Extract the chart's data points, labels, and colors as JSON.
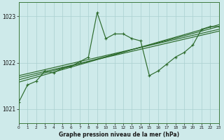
{
  "title": "Graphe pression niveau de la mer (hPa)",
  "bg_color": "#ceeaea",
  "grid_color": "#aacfcf",
  "line_color": "#2d6b2d",
  "ylim": [
    1020.7,
    1023.3
  ],
  "xlim": [
    0,
    23
  ],
  "yticks": [
    1021,
    1022,
    1023
  ],
  "xticks": [
    0,
    1,
    2,
    3,
    4,
    5,
    6,
    7,
    8,
    9,
    10,
    11,
    12,
    13,
    14,
    15,
    16,
    17,
    18,
    19,
    20,
    21,
    22,
    23
  ],
  "main_x": [
    0,
    1,
    2,
    3,
    4,
    5,
    6,
    7,
    8,
    9,
    10,
    11,
    12,
    13,
    14,
    15,
    16,
    17,
    18,
    19,
    20,
    21,
    22,
    23
  ],
  "main_y": [
    1021.15,
    1021.52,
    1021.6,
    1021.82,
    1021.78,
    1021.88,
    1021.92,
    1022.02,
    1022.12,
    1023.08,
    1022.52,
    1022.62,
    1022.62,
    1022.52,
    1022.47,
    1021.72,
    1021.82,
    1021.97,
    1022.12,
    1022.22,
    1022.38,
    1022.72,
    1022.78,
    1022.78
  ],
  "trend_lines": [
    {
      "x0": 0,
      "y0": 1021.72,
      "x1": 23,
      "y1": 1022.72
    },
    {
      "x0": 0,
      "y0": 1021.68,
      "x1": 23,
      "y1": 1022.68
    },
    {
      "x0": 0,
      "y0": 1021.63,
      "x1": 23,
      "y1": 1022.78
    },
    {
      "x0": 0,
      "y0": 1021.58,
      "x1": 23,
      "y1": 1022.82
    }
  ]
}
